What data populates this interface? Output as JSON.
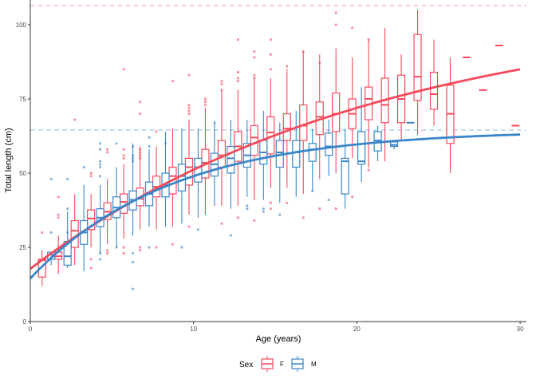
{
  "chart_data": {
    "type": "boxplot+line",
    "xlabel": "Age (years)",
    "ylabel": "Total length (cm)",
    "xlim": [
      0,
      30.3
    ],
    "ylim": [
      0,
      106
    ],
    "xticks": [
      0,
      10,
      20,
      30
    ],
    "yticks": [
      0,
      25,
      50,
      75,
      100
    ],
    "grid": false,
    "legend": {
      "title": "Sex",
      "position": "bottom",
      "entries": [
        "F",
        "M"
      ]
    },
    "colors": {
      "F": "#f8495a",
      "M": "#3a86c8"
    },
    "reference_lines": [
      {
        "series": "F",
        "y": 106.5,
        "style": "dashed"
      },
      {
        "series": "M",
        "y": 64.5,
        "style": "dashed"
      }
    ],
    "growth_curves": [
      {
        "series": "F",
        "model": "von Bertalanffy",
        "linf": 106.5,
        "k": 0.0472,
        "t0": -3.87
      },
      {
        "series": "M",
        "model": "von Bertalanffy",
        "linf": 64.5,
        "k": 0.117,
        "t0": -2.18
      }
    ],
    "boxes_columns": [
      "age",
      "low",
      "q1",
      "median",
      "q3",
      "high"
    ],
    "boxes": {
      "F": [
        [
          1,
          12,
          15,
          20.7,
          21,
          24
        ],
        [
          2,
          16,
          21,
          22,
          23.4,
          29
        ],
        [
          3,
          19,
          25,
          30.6,
          34,
          43
        ],
        [
          4,
          25,
          31,
          34.7,
          37.6,
          43
        ],
        [
          5,
          26,
          34.4,
          37,
          40,
          48
        ],
        [
          6,
          28,
          36.5,
          40.3,
          43,
          53
        ],
        [
          7,
          31,
          39,
          41.4,
          45,
          59
        ],
        [
          8,
          31,
          42,
          45.4,
          49,
          59
        ],
        [
          9,
          32,
          43,
          49,
          52,
          65
        ],
        [
          10,
          36,
          46,
          52,
          55,
          68
        ],
        [
          11,
          36,
          48.4,
          53.5,
          58,
          72
        ],
        [
          12,
          39,
          52,
          56,
          61,
          78
        ],
        [
          13,
          39,
          54,
          59,
          64,
          78
        ],
        [
          14,
          41,
          56,
          62,
          66,
          82
        ],
        [
          15,
          45,
          56.5,
          63.7,
          69,
          82
        ],
        [
          16,
          45,
          61,
          65,
          70,
          85
        ],
        [
          17,
          43,
          61,
          66,
          73,
          91
        ],
        [
          18,
          48,
          63,
          69,
          74,
          90
        ],
        [
          19,
          50,
          64,
          70,
          77,
          92
        ],
        [
          20,
          55,
          65,
          70,
          75,
          89
        ],
        [
          21,
          52,
          68,
          75,
          79,
          95
        ],
        [
          22,
          54,
          67,
          73,
          82,
          99
        ],
        [
          23,
          61,
          67,
          75,
          83,
          90
        ],
        [
          24,
          63,
          74.5,
          82.5,
          96.7,
          105
        ],
        [
          25,
          66,
          71.5,
          76.6,
          84,
          95
        ],
        [
          26,
          50,
          60,
          70,
          79.6,
          89
        ],
        [
          27,
          89,
          89,
          89,
          89,
          89
        ],
        [
          28,
          78,
          78,
          78,
          78,
          78
        ],
        [
          29,
          93,
          93,
          93,
          93,
          93
        ],
        [
          30,
          66,
          66,
          66,
          66,
          66
        ]
      ],
      "M": [
        [
          1,
          19,
          21,
          22.5,
          23.4,
          23.5
        ],
        [
          2,
          18,
          19,
          22,
          27,
          37
        ],
        [
          3,
          17,
          26,
          30,
          34,
          46
        ],
        [
          4,
          23,
          32,
          35,
          38,
          46
        ],
        [
          5,
          25,
          35,
          38.4,
          42,
          52
        ],
        [
          6,
          29,
          37.6,
          41,
          44,
          60
        ],
        [
          7,
          32,
          39,
          43,
          47,
          58
        ],
        [
          8,
          32,
          42,
          46,
          50,
          64
        ],
        [
          9,
          33,
          44,
          49,
          53,
          65
        ],
        [
          10,
          35,
          47,
          52,
          55,
          65
        ],
        [
          11,
          39,
          49,
          53,
          56.7,
          67
        ],
        [
          12,
          38,
          50,
          55,
          59,
          68
        ],
        [
          13,
          42,
          52,
          56,
          60,
          68
        ],
        [
          14,
          41,
          53,
          57,
          61,
          71
        ],
        [
          15,
          40,
          52,
          57,
          61,
          67
        ],
        [
          16,
          42,
          52,
          57,
          61,
          71
        ],
        [
          17,
          44,
          54,
          58,
          60,
          65
        ],
        [
          18,
          49,
          56,
          59,
          63.5,
          68
        ],
        [
          19,
          38,
          43,
          54,
          55,
          65
        ],
        [
          20,
          47,
          53,
          54,
          64,
          79
        ],
        [
          21,
          54,
          57.5,
          61,
          64,
          66
        ],
        [
          22,
          58,
          59,
          59.5,
          60.5,
          61
        ],
        [
          23,
          67,
          67,
          67,
          67,
          67
        ]
      ]
    },
    "outliers_columns": [
      "sex",
      "age",
      "value"
    ],
    "outliers": [
      [
        "F",
        1,
        30
      ],
      [
        "M",
        1,
        30
      ],
      [
        "M",
        1,
        48
      ],
      [
        "F",
        2,
        35
      ],
      [
        "F",
        2,
        36
      ],
      [
        "F",
        2,
        42
      ],
      [
        "M",
        2,
        30
      ],
      [
        "M",
        2,
        38
      ],
      [
        "M",
        2,
        48
      ],
      [
        "F",
        3,
        68
      ],
      [
        "M",
        3,
        52
      ],
      [
        "F",
        4,
        50
      ],
      [
        "F",
        4,
        49
      ],
      [
        "F",
        4,
        21
      ],
      [
        "F",
        4,
        18
      ],
      [
        "M",
        4,
        60
      ],
      [
        "M",
        4,
        58
      ],
      [
        "M",
        4,
        54
      ],
      [
        "M",
        4,
        53
      ],
      [
        "M",
        4,
        52
      ],
      [
        "M",
        4,
        49
      ],
      [
        "M",
        4,
        23
      ],
      [
        "M",
        4,
        21
      ],
      [
        "F",
        5,
        58
      ],
      [
        "F",
        5,
        57
      ],
      [
        "F",
        5,
        24
      ],
      [
        "F",
        5,
        23
      ],
      [
        "M",
        5,
        60
      ],
      [
        "M",
        5,
        25
      ],
      [
        "F",
        6,
        85
      ],
      [
        "F",
        6,
        58
      ],
      [
        "F",
        6,
        56
      ],
      [
        "F",
        6,
        55
      ],
      [
        "F",
        6,
        23
      ],
      [
        "F",
        6,
        25
      ],
      [
        "M",
        6,
        59
      ],
      [
        "M",
        6,
        56
      ],
      [
        "M",
        6,
        55
      ],
      [
        "M",
        6,
        54
      ],
      [
        "M",
        6,
        23
      ],
      [
        "M",
        6,
        20
      ],
      [
        "M",
        6,
        11
      ],
      [
        "F",
        7,
        74
      ],
      [
        "F",
        7,
        70
      ],
      [
        "F",
        7,
        58
      ],
      [
        "F",
        7,
        57
      ],
      [
        "F",
        7,
        56
      ],
      [
        "F",
        7,
        55
      ],
      [
        "F",
        7,
        25
      ],
      [
        "F",
        7,
        24
      ],
      [
        "M",
        7,
        62
      ],
      [
        "M",
        7,
        59
      ],
      [
        "M",
        7,
        25
      ],
      [
        "F",
        8,
        64
      ],
      [
        "F",
        8,
        25
      ],
      [
        "M",
        8,
        60
      ],
      [
        "F",
        9,
        81
      ],
      [
        "F",
        9,
        26
      ],
      [
        "M",
        9,
        25
      ],
      [
        "F",
        10,
        83
      ],
      [
        "F",
        10,
        73
      ],
      [
        "F",
        10,
        72
      ],
      [
        "F",
        10,
        71
      ],
      [
        "F",
        10,
        70
      ],
      [
        "F",
        10,
        32
      ],
      [
        "M",
        10,
        31
      ],
      [
        "F",
        11,
        75
      ],
      [
        "F",
        11,
        74
      ],
      [
        "F",
        11,
        73
      ],
      [
        "M",
        11,
        67
      ],
      [
        "F",
        12,
        81
      ],
      [
        "F",
        12,
        80
      ],
      [
        "F",
        12,
        78
      ],
      [
        "F",
        12,
        33
      ],
      [
        "M",
        12,
        29
      ],
      [
        "F",
        13,
        95
      ],
      [
        "F",
        13,
        84
      ],
      [
        "F",
        13,
        82
      ],
      [
        "F",
        13,
        81
      ],
      [
        "F",
        13,
        35
      ],
      [
        "M",
        13,
        38
      ],
      [
        "M",
        13,
        39
      ],
      [
        "F",
        14,
        91
      ],
      [
        "F",
        14,
        89
      ],
      [
        "F",
        14,
        83
      ],
      [
        "F",
        14,
        82
      ],
      [
        "F",
        14,
        34
      ],
      [
        "M",
        14,
        38
      ],
      [
        "M",
        14,
        37
      ],
      [
        "F",
        15,
        95
      ],
      [
        "F",
        15,
        90
      ],
      [
        "F",
        15,
        85
      ],
      [
        "F",
        15,
        40
      ],
      [
        "F",
        15,
        38
      ],
      [
        "M",
        15,
        36
      ],
      [
        "F",
        16,
        86
      ],
      [
        "F",
        16,
        40
      ],
      [
        "F",
        17,
        91
      ],
      [
        "F",
        17,
        35
      ],
      [
        "M",
        17,
        44
      ],
      [
        "F",
        18,
        87
      ],
      [
        "F",
        18,
        38
      ],
      [
        "M",
        18,
        41
      ],
      [
        "F",
        19,
        104
      ],
      [
        "F",
        19,
        100
      ],
      [
        "F",
        19,
        38
      ],
      [
        "F",
        20,
        99
      ],
      [
        "F",
        20,
        42
      ],
      [
        "F",
        21,
        95
      ],
      [
        "F",
        21,
        51
      ]
    ]
  }
}
